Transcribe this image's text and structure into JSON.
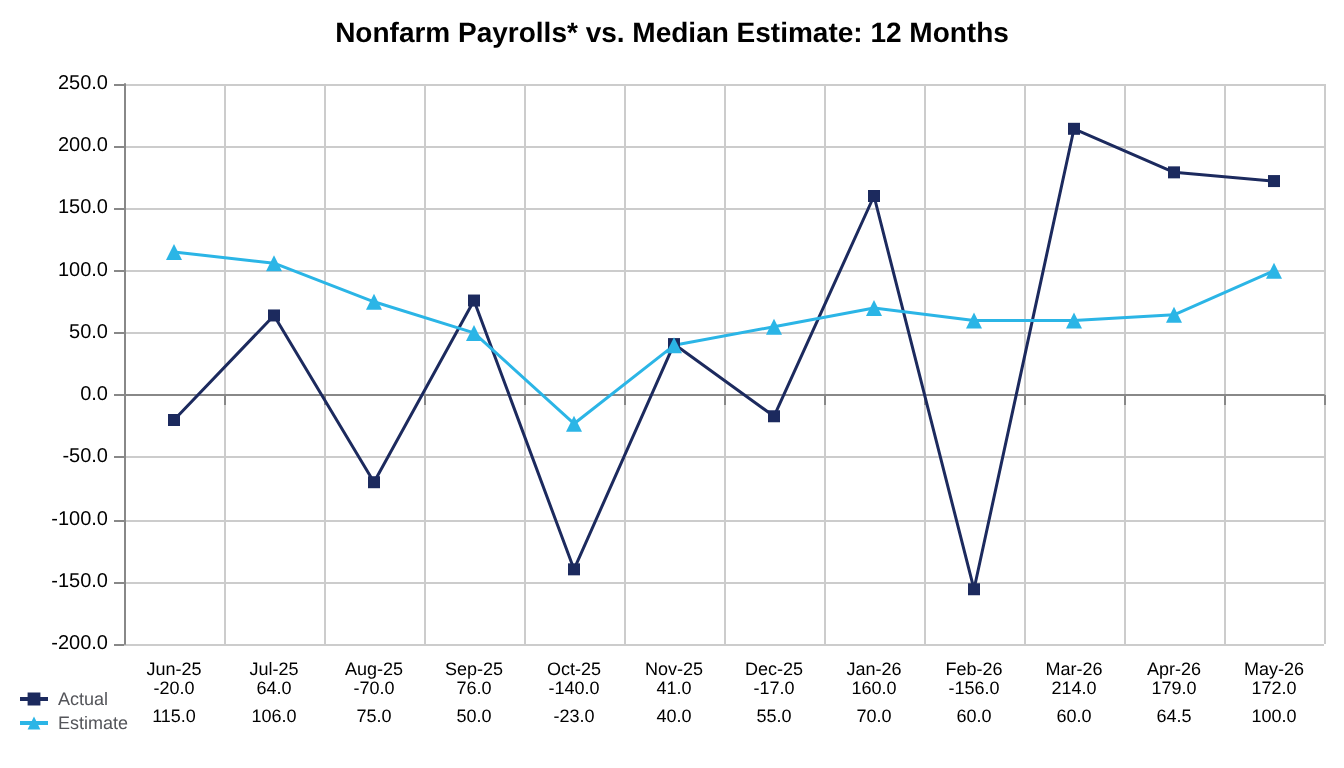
{
  "chart_data": {
    "type": "line",
    "title": "Nonfarm Payrolls* vs. Median Estimate: 12 Months",
    "categories": [
      "Jun-25",
      "Jul-25",
      "Aug-25",
      "Sep-25",
      "Oct-25",
      "Nov-25",
      "Dec-25",
      "Jan-26",
      "Feb-26",
      "Mar-26",
      "Apr-26",
      "May-26"
    ],
    "series": [
      {
        "name": "Actual",
        "color": "#1c2a5e",
        "marker": "square",
        "values": [
          -20.0,
          64.0,
          -70.0,
          76.0,
          -140.0,
          41.0,
          -17.0,
          160.0,
          -156.0,
          214.0,
          179.0,
          172.0
        ],
        "value_labels": [
          "-20.0",
          "64.0",
          "-70.0",
          "76.0",
          "-140.0",
          "41.0",
          "-17.0",
          "160.0",
          "-156.0",
          "214.0",
          "179.0",
          "172.0"
        ]
      },
      {
        "name": "Estimate",
        "color": "#2bb5e6",
        "marker": "triangle",
        "values": [
          115.0,
          106.0,
          75.0,
          50.0,
          -23.0,
          40.0,
          55.0,
          70.0,
          60.0,
          60.0,
          64.5,
          100.0
        ],
        "value_labels": [
          "115.0",
          "106.0",
          "75.0",
          "50.0",
          "-23.0",
          "40.0",
          "55.0",
          "70.0",
          "60.0",
          "60.0",
          "64.5",
          "100.0"
        ]
      }
    ],
    "ylim": [
      -200,
      250
    ],
    "yticks": [
      {
        "value": -200,
        "label": "-200.0"
      },
      {
        "value": -150,
        "label": "-150.0"
      },
      {
        "value": -100,
        "label": "-100.0"
      },
      {
        "value": -50,
        "label": "-50.0"
      },
      {
        "value": 0,
        "label": "0.0"
      },
      {
        "value": 50,
        "label": "50.0"
      },
      {
        "value": 100,
        "label": "100.0"
      },
      {
        "value": 150,
        "label": "150.0"
      },
      {
        "value": 200,
        "label": "200.0"
      },
      {
        "value": 250,
        "label": "250.0"
      }
    ],
    "grid": true,
    "legend": "bottom",
    "line_style": "solid"
  }
}
